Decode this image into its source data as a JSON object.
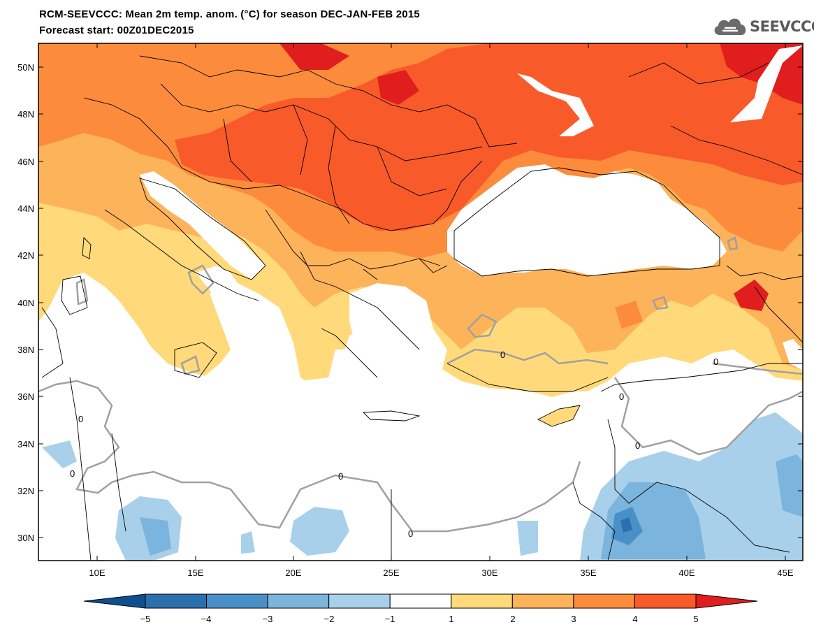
{
  "title": {
    "line1": "RCM-SEEVCCC: Mean 2m temp. anom. (°C) for season DEC-JAN-FEB 2015",
    "line2": "Forecast start: 00Z01DEC2015"
  },
  "logo": {
    "text": "SEEVCCC",
    "icon": "cloud-icon"
  },
  "map": {
    "lat_labels": [
      "50N",
      "48N",
      "46N",
      "44N",
      "42N",
      "40N",
      "38N",
      "36N",
      "34N",
      "32N",
      "30N"
    ],
    "lon_labels": [
      "10E",
      "15E",
      "20E",
      "25E",
      "30E",
      "35E",
      "40E",
      "45E"
    ],
    "contour_label": "0"
  },
  "colorbar": {
    "ticks": [
      "−5",
      "−4",
      "−3",
      "−2",
      "−1",
      "1",
      "2",
      "3",
      "4",
      "5"
    ],
    "colors": [
      "#0f4f8f",
      "#2b6fad",
      "#4a90c8",
      "#7bb4dd",
      "#a9d0ea",
      "#ffffff",
      "#ffd97a",
      "#fdb35a",
      "#fc8c3c",
      "#f95a2a",
      "#e01e1e"
    ]
  },
  "palette": {
    "sea": "#ffffff",
    "warm1": "#ffd97a",
    "warm2": "#fdb35a",
    "warm3": "#fc8c3c",
    "warm4": "#f95a2a",
    "warm5": "#e01e1e",
    "cool1": "#a9d0ea",
    "cool2": "#7bb4dd",
    "cool3": "#4a90c8",
    "cool4": "#2b6fad",
    "border": "#000000",
    "zero_contour": "#a0a0a0"
  }
}
